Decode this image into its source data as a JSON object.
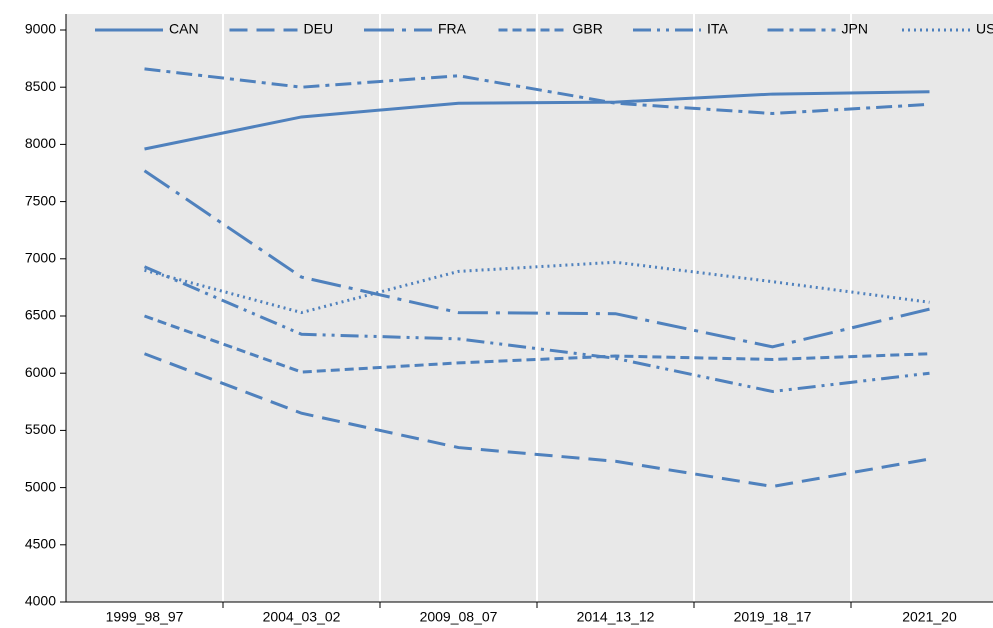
{
  "chart_data": {
    "type": "line",
    "categories": [
      "1999_98_97",
      "2004_03_02",
      "2009_08_07",
      "2014_13_12",
      "2019_18_17",
      "2021_20"
    ],
    "series": [
      {
        "name": "CAN",
        "color": "#4f81bd",
        "dash": "none",
        "values": [
          7960,
          8240,
          8360,
          8370,
          8440,
          8460
        ]
      },
      {
        "name": "DEU",
        "color": "#4f81bd",
        "dash": "18 9",
        "values": [
          6170,
          5650,
          5350,
          5230,
          5010,
          5250
        ]
      },
      {
        "name": "FRA",
        "color": "#4f81bd",
        "dash": "30 8 4 8",
        "values": [
          7770,
          6840,
          6530,
          6520,
          6230,
          6560
        ]
      },
      {
        "name": "GBR",
        "color": "#4f81bd",
        "dash": "9 5",
        "values": [
          6500,
          6010,
          6090,
          6150,
          6120,
          6170
        ]
      },
      {
        "name": "ITA",
        "color": "#4f81bd",
        "dash": "18 6 3 6 3 6",
        "values": [
          6930,
          6340,
          6300,
          6130,
          5840,
          6000
        ]
      },
      {
        "name": "JPN",
        "color": "#4f81bd",
        "dash": "16 6 4 6",
        "values": [
          8660,
          8500,
          8600,
          8360,
          8270,
          8350
        ]
      },
      {
        "name": "USA",
        "color": "#4f81bd",
        "dash": "2 4",
        "values": [
          6900,
          6530,
          6890,
          6970,
          6800,
          6620
        ]
      }
    ],
    "ylim": [
      4000,
      9000
    ],
    "yticks": [
      4000,
      4500,
      5000,
      5500,
      6000,
      6500,
      7000,
      7500,
      8000,
      8500,
      9000
    ],
    "grid": true,
    "legend": "top"
  }
}
